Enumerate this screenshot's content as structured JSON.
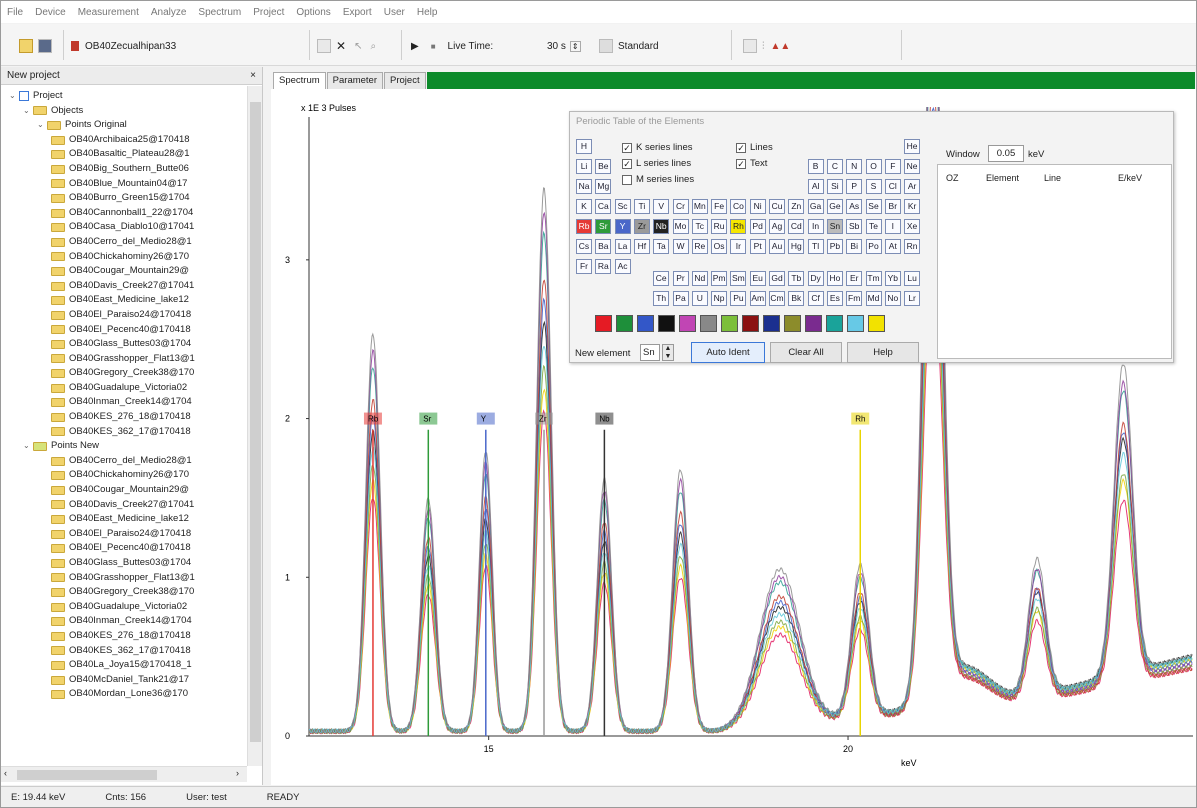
{
  "menu": [
    "File",
    "Device",
    "Measurement",
    "Analyze",
    "Spectrum",
    "Project",
    "Options",
    "Export",
    "User",
    "Help"
  ],
  "toolbar": {
    "spectrum_name": "OB40Zecualhipan33",
    "live_time_label": "Live Time:",
    "live_time_value": "30 s",
    "mode_value": "Standard"
  },
  "project_panel": {
    "title": "New project",
    "close": "×",
    "tree": [
      {
        "level": 0,
        "toggle": "⌄",
        "label": "Project",
        "folder": false
      },
      {
        "level": 1,
        "toggle": "⌄",
        "label": "Objects",
        "folder": true
      },
      {
        "level": 2,
        "toggle": "⌄",
        "label": "Points Original",
        "folder": true
      },
      {
        "level": 3,
        "label": "OB40Archibaica25@170418"
      },
      {
        "level": 3,
        "label": "OB40Basaltic_Plateau28@1"
      },
      {
        "level": 3,
        "label": "OB40Big_Southern_Butte06"
      },
      {
        "level": 3,
        "label": "OB40Blue_Mountain04@17"
      },
      {
        "level": 3,
        "label": "OB40Burro_Green15@1704"
      },
      {
        "level": 3,
        "label": "OB40Cannonball1_22@1704"
      },
      {
        "level": 3,
        "label": "OB40Casa_Diablo10@17041"
      },
      {
        "level": 3,
        "label": "OB40Cerro_del_Medio28@1"
      },
      {
        "level": 3,
        "label": "OB40Chickahominy26@170"
      },
      {
        "level": 3,
        "label": "OB40Cougar_Mountain29@"
      },
      {
        "level": 3,
        "label": "OB40Davis_Creek27@17041"
      },
      {
        "level": 3,
        "label": "OB40East_Medicine_lake12"
      },
      {
        "level": 3,
        "label": "OB40El_Paraiso24@170418"
      },
      {
        "level": 3,
        "label": "OB40El_Pecenc40@170418"
      },
      {
        "level": 3,
        "label": "OB40Glass_Buttes03@1704"
      },
      {
        "level": 3,
        "label": "OB40Grasshopper_Flat13@1"
      },
      {
        "level": 3,
        "label": "OB40Gregory_Creek38@170"
      },
      {
        "level": 3,
        "label": "OB40Guadalupe_Victoria02"
      },
      {
        "level": 3,
        "label": "OB40Inman_Creek14@1704"
      },
      {
        "level": 3,
        "label": "OB40KES_276_18@170418"
      },
      {
        "level": 3,
        "label": "OB40KES_362_17@170418"
      },
      {
        "level": 1,
        "toggle": "⌄",
        "label": "Points New",
        "folder": true
      },
      {
        "level": 3,
        "label": "OB40Cerro_del_Medio28@1"
      },
      {
        "level": 3,
        "label": "OB40Chickahominy26@170"
      },
      {
        "level": 3,
        "label": "OB40Cougar_Mountain29@"
      },
      {
        "level": 3,
        "label": "OB40Davis_Creek27@17041"
      },
      {
        "level": 3,
        "label": "OB40East_Medicine_lake12"
      },
      {
        "level": 3,
        "label": "OB40El_Paraiso24@170418"
      },
      {
        "level": 3,
        "label": "OB40El_Pecenc40@170418"
      },
      {
        "level": 3,
        "label": "OB40Glass_Buttes03@1704"
      },
      {
        "level": 3,
        "label": "OB40Grasshopper_Flat13@1"
      },
      {
        "level": 3,
        "label": "OB40Gregory_Creek38@170"
      },
      {
        "level": 3,
        "label": "OB40Guadalupe_Victoria02"
      },
      {
        "level": 3,
        "label": "OB40Inman_Creek14@1704"
      },
      {
        "level": 3,
        "label": "OB40KES_276_18@170418"
      },
      {
        "level": 3,
        "label": "OB40KES_362_17@170418"
      },
      {
        "level": 3,
        "label": "OB40La_Joya15@170418_1"
      },
      {
        "level": 3,
        "label": "OB40McDaniel_Tank21@17"
      },
      {
        "level": 3,
        "label": "OB40Mordan_Lone36@170"
      }
    ]
  },
  "tabs": [
    "Spectrum",
    "Parameter",
    "Project"
  ],
  "chart_data": {
    "type": "line",
    "ylabel": "x 1E 3 Pulses",
    "xlabel": "keV",
    "xticks": [
      15,
      20
    ],
    "yticks": [
      0.0,
      1.0,
      2.0,
      3.0
    ],
    "xlim": [
      12.5,
      24.8
    ],
    "ylim": [
      0,
      3.9
    ],
    "peaks": [
      {
        "x": 13.39,
        "h": 2.05,
        "w": 0.1
      },
      {
        "x": 14.16,
        "h": 1.2,
        "w": 0.1
      },
      {
        "x": 14.96,
        "h": 1.45,
        "w": 0.09
      },
      {
        "x": 15.77,
        "h": 2.8,
        "w": 0.1
      },
      {
        "x": 16.61,
        "h": 1.3,
        "w": 0.1
      },
      {
        "x": 17.67,
        "h": 1.35,
        "w": 0.11
      },
      {
        "x": 19.05,
        "h": 0.8,
        "w": 0.28
      },
      {
        "x": 20.17,
        "h": 0.78,
        "w": 0.12
      },
      {
        "x": 21.18,
        "h": 3.8,
        "w": 0.13
      },
      {
        "x": 22.63,
        "h": 0.7,
        "w": 0.12
      },
      {
        "x": 23.83,
        "h": 1.6,
        "w": 0.13
      }
    ],
    "markers": [
      {
        "label": "Rb",
        "x": 13.39,
        "color": "#e53935"
      },
      {
        "label": "Sr",
        "x": 14.16,
        "color": "#2e9b3a"
      },
      {
        "label": "Y",
        "x": 14.96,
        "color": "#4a67c9"
      },
      {
        "label": "Zr",
        "x": 15.77,
        "color": "#9a9a9a"
      },
      {
        "label": "Nb",
        "x": 16.61,
        "color": "#333333"
      },
      {
        "label": "Rh",
        "x": 20.17,
        "color": "#e8d400"
      }
    ],
    "series_colors": [
      "#e0165e",
      "#1a1a1a",
      "#2a9d8f",
      "#f0d000",
      "#3b5bc7",
      "#8e3b9b",
      "#7aa63b",
      "#c0392b",
      "#888888",
      "#5dc7d8"
    ]
  },
  "periodic_dialog": {
    "title": "Periodic Table of the Elements",
    "checks": [
      {
        "label": "K series lines",
        "checked": true
      },
      {
        "label": "L series lines",
        "checked": true
      },
      {
        "label": "M series lines",
        "checked": false
      },
      {
        "label": "Lines",
        "checked": true
      },
      {
        "label": "Text",
        "checked": true
      }
    ],
    "elements": [
      {
        "s": "H",
        "c": 0,
        "r": 0
      },
      {
        "s": "He",
        "c": 17,
        "r": 0
      },
      {
        "s": "Li",
        "c": 0,
        "r": 1
      },
      {
        "s": "Be",
        "c": 1,
        "r": 1
      },
      {
        "s": "B",
        "c": 12,
        "r": 1
      },
      {
        "s": "C",
        "c": 13,
        "r": 1
      },
      {
        "s": "N",
        "c": 14,
        "r": 1
      },
      {
        "s": "O",
        "c": 15,
        "r": 1
      },
      {
        "s": "F",
        "c": 16,
        "r": 1
      },
      {
        "s": "Ne",
        "c": 17,
        "r": 1
      },
      {
        "s": "Na",
        "c": 0,
        "r": 2
      },
      {
        "s": "Mg",
        "c": 1,
        "r": 2
      },
      {
        "s": "Al",
        "c": 12,
        "r": 2
      },
      {
        "s": "Si",
        "c": 13,
        "r": 2
      },
      {
        "s": "P",
        "c": 14,
        "r": 2
      },
      {
        "s": "S",
        "c": 15,
        "r": 2
      },
      {
        "s": "Cl",
        "c": 16,
        "r": 2
      },
      {
        "s": "Ar",
        "c": 17,
        "r": 2
      },
      {
        "s": "K",
        "c": 0,
        "r": 3
      },
      {
        "s": "Ca",
        "c": 1,
        "r": 3
      },
      {
        "s": "Sc",
        "c": 2,
        "r": 3
      },
      {
        "s": "Ti",
        "c": 3,
        "r": 3
      },
      {
        "s": "V",
        "c": 4,
        "r": 3
      },
      {
        "s": "Cr",
        "c": 5,
        "r": 3
      },
      {
        "s": "Mn",
        "c": 6,
        "r": 3
      },
      {
        "s": "Fe",
        "c": 7,
        "r": 3
      },
      {
        "s": "Co",
        "c": 8,
        "r": 3
      },
      {
        "s": "Ni",
        "c": 9,
        "r": 3
      },
      {
        "s": "Cu",
        "c": 10,
        "r": 3
      },
      {
        "s": "Zn",
        "c": 11,
        "r": 3
      },
      {
        "s": "Ga",
        "c": 12,
        "r": 3
      },
      {
        "s": "Ge",
        "c": 13,
        "r": 3
      },
      {
        "s": "As",
        "c": 14,
        "r": 3
      },
      {
        "s": "Se",
        "c": 15,
        "r": 3
      },
      {
        "s": "Br",
        "c": 16,
        "r": 3
      },
      {
        "s": "Kr",
        "c": 17,
        "r": 3
      },
      {
        "s": "Rb",
        "c": 0,
        "r": 4,
        "bg": "#e53935"
      },
      {
        "s": "Sr",
        "c": 1,
        "r": 4,
        "bg": "#2e9b3a"
      },
      {
        "s": "Y",
        "c": 2,
        "r": 4,
        "bg": "#4a67c9"
      },
      {
        "s": "Zr",
        "c": 3,
        "r": 4,
        "bg": "#9a9a9a"
      },
      {
        "s": "Nb",
        "c": 4,
        "r": 4,
        "bg": "#222222"
      },
      {
        "s": "Mo",
        "c": 5,
        "r": 4
      },
      {
        "s": "Tc",
        "c": 6,
        "r": 4
      },
      {
        "s": "Ru",
        "c": 7,
        "r": 4
      },
      {
        "s": "Rh",
        "c": 8,
        "r": 4,
        "bg": "#f5e600"
      },
      {
        "s": "Pd",
        "c": 9,
        "r": 4
      },
      {
        "s": "Ag",
        "c": 10,
        "r": 4
      },
      {
        "s": "Cd",
        "c": 11,
        "r": 4
      },
      {
        "s": "In",
        "c": 12,
        "r": 4
      },
      {
        "s": "Sn",
        "c": 13,
        "r": 4,
        "bg": "#bbbbbb"
      },
      {
        "s": "Sb",
        "c": 14,
        "r": 4
      },
      {
        "s": "Te",
        "c": 15,
        "r": 4
      },
      {
        "s": "I",
        "c": 16,
        "r": 4
      },
      {
        "s": "Xe",
        "c": 17,
        "r": 4
      },
      {
        "s": "Cs",
        "c": 0,
        "r": 5
      },
      {
        "s": "Ba",
        "c": 1,
        "r": 5
      },
      {
        "s": "La",
        "c": 2,
        "r": 5
      },
      {
        "s": "Hf",
        "c": 3,
        "r": 5
      },
      {
        "s": "Ta",
        "c": 4,
        "r": 5
      },
      {
        "s": "W",
        "c": 5,
        "r": 5
      },
      {
        "s": "Re",
        "c": 6,
        "r": 5
      },
      {
        "s": "Os",
        "c": 7,
        "r": 5
      },
      {
        "s": "Ir",
        "c": 8,
        "r": 5
      },
      {
        "s": "Pt",
        "c": 9,
        "r": 5
      },
      {
        "s": "Au",
        "c": 10,
        "r": 5
      },
      {
        "s": "Hg",
        "c": 11,
        "r": 5
      },
      {
        "s": "Tl",
        "c": 12,
        "r": 5
      },
      {
        "s": "Pb",
        "c": 13,
        "r": 5
      },
      {
        "s": "Bi",
        "c": 14,
        "r": 5
      },
      {
        "s": "Po",
        "c": 15,
        "r": 5
      },
      {
        "s": "At",
        "c": 16,
        "r": 5
      },
      {
        "s": "Rn",
        "c": 17,
        "r": 5
      },
      {
        "s": "Fr",
        "c": 0,
        "r": 6
      },
      {
        "s": "Ra",
        "c": 1,
        "r": 6
      },
      {
        "s": "Ac",
        "c": 2,
        "r": 6
      },
      {
        "s": "Ce",
        "c": 4,
        "r": 6.6
      },
      {
        "s": "Pr",
        "c": 5,
        "r": 6.6
      },
      {
        "s": "Nd",
        "c": 6,
        "r": 6.6
      },
      {
        "s": "Pm",
        "c": 7,
        "r": 6.6
      },
      {
        "s": "Sm",
        "c": 8,
        "r": 6.6
      },
      {
        "s": "Eu",
        "c": 9,
        "r": 6.6
      },
      {
        "s": "Gd",
        "c": 10,
        "r": 6.6
      },
      {
        "s": "Tb",
        "c": 11,
        "r": 6.6
      },
      {
        "s": "Dy",
        "c": 12,
        "r": 6.6
      },
      {
        "s": "Ho",
        "c": 13,
        "r": 6.6
      },
      {
        "s": "Er",
        "c": 14,
        "r": 6.6
      },
      {
        "s": "Tm",
        "c": 15,
        "r": 6.6
      },
      {
        "s": "Yb",
        "c": 16,
        "r": 6.6
      },
      {
        "s": "Lu",
        "c": 17,
        "r": 6.6
      },
      {
        "s": "Th",
        "c": 4,
        "r": 7.6
      },
      {
        "s": "Pa",
        "c": 5,
        "r": 7.6
      },
      {
        "s": "U",
        "c": 6,
        "r": 7.6
      },
      {
        "s": "Np",
        "c": 7,
        "r": 7.6
      },
      {
        "s": "Pu",
        "c": 8,
        "r": 7.6
      },
      {
        "s": "Am",
        "c": 9,
        "r": 7.6
      },
      {
        "s": "Cm",
        "c": 10,
        "r": 7.6
      },
      {
        "s": "Bk",
        "c": 11,
        "r": 7.6
      },
      {
        "s": "Cf",
        "c": 12,
        "r": 7.6
      },
      {
        "s": "Es",
        "c": 13,
        "r": 7.6
      },
      {
        "s": "Fm",
        "c": 14,
        "r": 7.6
      },
      {
        "s": "Md",
        "c": 15,
        "r": 7.6
      },
      {
        "s": "No",
        "c": 16,
        "r": 7.6
      },
      {
        "s": "Lr",
        "c": 17,
        "r": 7.6
      }
    ],
    "swatches": [
      "#e51b24",
      "#1e8f3a",
      "#3357c8",
      "#111111",
      "#c145b4",
      "#888888",
      "#7cbf3a",
      "#8b1111",
      "#1b2f8f",
      "#8c8c2b",
      "#7a2b8f",
      "#1aa39a",
      "#67c9e6",
      "#f2e200"
    ],
    "new_element_label": "New element",
    "new_element_value": "Sn",
    "auto_ident": "Auto Ident",
    "clear_all": "Clear All",
    "help": "Help",
    "window_label": "Window",
    "window_value": "0.05",
    "window_unit": "keV",
    "columns": [
      "OZ",
      "Element",
      "Line",
      "E/keV"
    ]
  },
  "status": {
    "energy": "E: 19.44 keV",
    "counts": "Cnts: 156",
    "user": "User: test",
    "state": "READY"
  }
}
